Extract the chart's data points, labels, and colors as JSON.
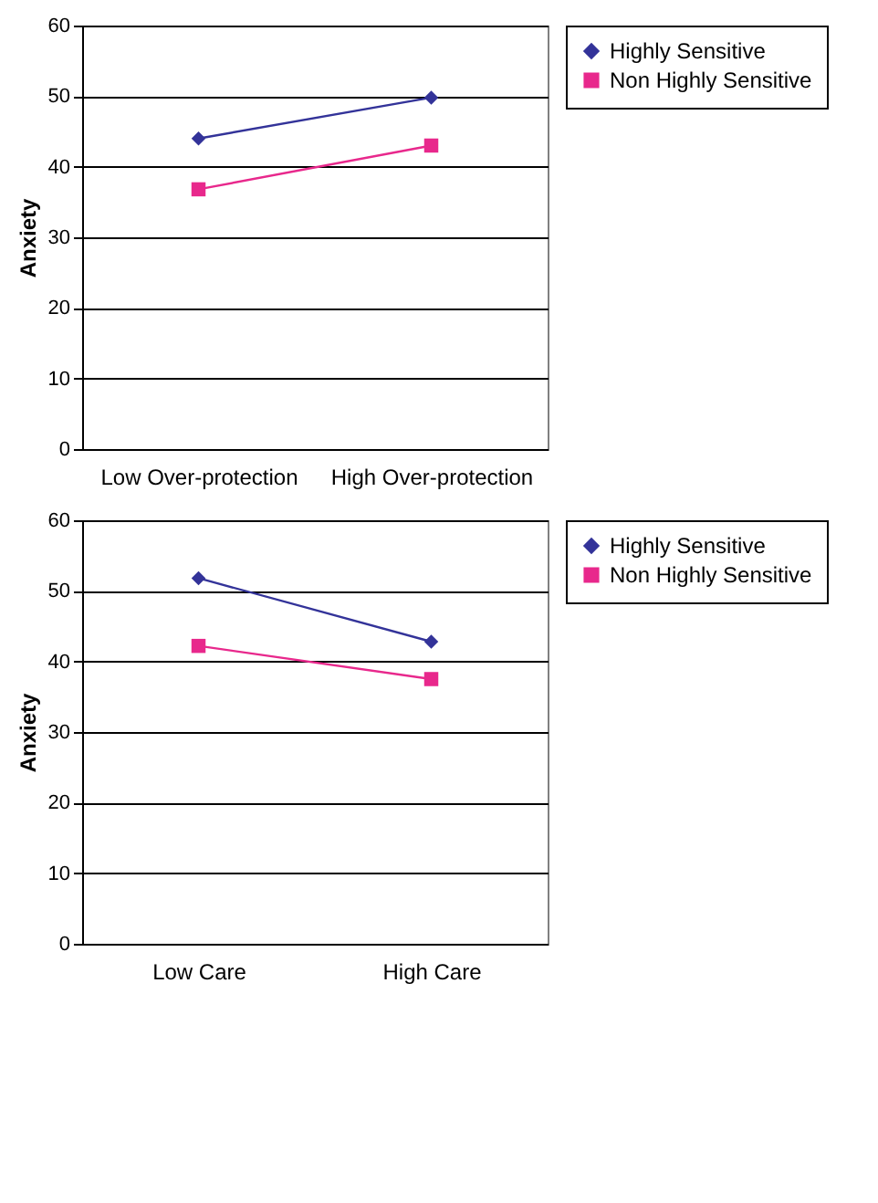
{
  "chart_data": [
    {
      "type": "line",
      "ylabel": "Anxiety",
      "categories": [
        "Low Over-protection",
        "High Over-protection"
      ],
      "ylim": [
        0,
        60
      ],
      "yticks": [
        0,
        10,
        20,
        30,
        40,
        50,
        60
      ],
      "grid": "y",
      "legend": "right",
      "series": [
        {
          "name": "Highly Sensitive",
          "color": "#333399",
          "marker": "diamond",
          "values": [
            44,
            49.8
          ]
        },
        {
          "name": "Non Highly Sensitive",
          "color": "#e8288c",
          "marker": "square",
          "values": [
            36.8,
            43
          ]
        }
      ]
    },
    {
      "type": "line",
      "ylabel": "Anxiety",
      "categories": [
        "Low Care",
        "High Care"
      ],
      "ylim": [
        0,
        60
      ],
      "yticks": [
        0,
        10,
        20,
        30,
        40,
        50,
        60
      ],
      "grid": "y",
      "legend": "right",
      "series": [
        {
          "name": "Highly Sensitive",
          "color": "#333399",
          "marker": "diamond",
          "values": [
            51.8,
            42.8
          ]
        },
        {
          "name": "Non Highly Sensitive",
          "color": "#e8288c",
          "marker": "square",
          "values": [
            42.2,
            37.5
          ]
        }
      ]
    }
  ]
}
